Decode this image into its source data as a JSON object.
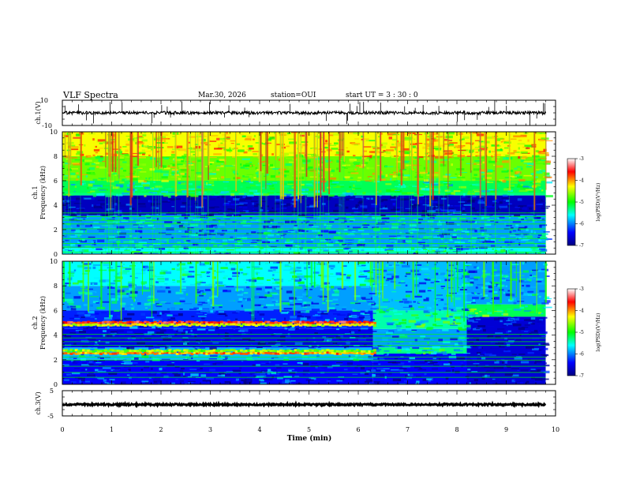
{
  "header": {
    "title": "VLF Spectra",
    "date": "Mar.30, 2026",
    "station": "station=OUI",
    "start": "start UT =  3 : 30 : 0"
  },
  "chart_data": [
    {
      "type": "line",
      "panel": "ch1-waveform",
      "ylabel": "ch.1(V)",
      "ylim": [
        -10,
        10
      ],
      "ytick_labels": [
        "10",
        "-10"
      ],
      "xlim": [
        0,
        10
      ],
      "signal": {
        "baseline_v": 0,
        "noise_v": 1.2,
        "end_min": 9.8
      }
    },
    {
      "type": "heatmap",
      "panel": "ch1-spectrogram",
      "ylabel": "ch.1\nFrequency (kHz)",
      "ylim": [
        0,
        10
      ],
      "ytick_labels": [
        "0",
        "2",
        "4",
        "6",
        "8",
        "10"
      ],
      "xlim": [
        0,
        10
      ],
      "data_end_min": 9.8,
      "colorbar": {
        "label": "log(PSD)(V²/Hz)",
        "range": [
          -7,
          -3
        ],
        "tick_labels": [
          "-3",
          "-4",
          "-5",
          "-6",
          "-7"
        ]
      },
      "bands_khz": [
        {
          "lo": 0,
          "hi": 0.5,
          "level": -5.6
        },
        {
          "lo": 0.5,
          "hi": 3.2,
          "level": -5.9
        },
        {
          "lo": 3.2,
          "hi": 4.8,
          "level": -6.7
        },
        {
          "lo": 4.8,
          "hi": 5.0,
          "level": -5.3
        },
        {
          "lo": 5.0,
          "hi": 6.0,
          "level": -5.2
        },
        {
          "lo": 6.0,
          "hi": 8.0,
          "level": -4.7
        },
        {
          "lo": 8.0,
          "hi": 10.0,
          "level": -4.3
        }
      ],
      "lines_khz": [
        0.2,
        0.6,
        0.9,
        1.3,
        1.7,
        2.1,
        2.5,
        2.8,
        3.1,
        3.4
      ],
      "spheric_count": 85
    },
    {
      "type": "heatmap",
      "panel": "ch2-spectrogram",
      "ylabel": "ch.2\nFrequency (kHz)",
      "ylim": [
        0,
        10
      ],
      "ytick_labels": [
        "0",
        "2",
        "4",
        "6",
        "8",
        "10"
      ],
      "xlim": [
        0,
        10
      ],
      "data_end_min": 9.8,
      "colorbar": {
        "label": "log(PSD)(V²/Hz)",
        "range": [
          -7,
          -3
        ],
        "tick_labels": [
          "-3",
          "-4",
          "-5",
          "-6",
          "-7"
        ]
      },
      "segments": [
        {
          "t0": 0,
          "t1": 6.3,
          "bands_khz": [
            {
              "lo": 0,
              "hi": 2.0,
              "level": -6.4
            },
            {
              "lo": 2.0,
              "hi": 3.0,
              "level": -5.8
            },
            {
              "lo": 3.0,
              "hi": 4.5,
              "level": -6.5
            },
            {
              "lo": 4.5,
              "hi": 6.0,
              "level": -6.3
            },
            {
              "lo": 6.0,
              "hi": 8.0,
              "level": -5.9
            },
            {
              "lo": 8.0,
              "hi": 10.0,
              "level": -5.6
            }
          ]
        },
        {
          "t0": 6.3,
          "t1": 8.2,
          "bands_khz": [
            {
              "lo": 0,
              "hi": 2.5,
              "level": -6.4
            },
            {
              "lo": 2.5,
              "hi": 3.0,
              "level": -5.3
            },
            {
              "lo": 3.0,
              "hi": 4.5,
              "level": -5.9
            },
            {
              "lo": 4.5,
              "hi": 6.0,
              "level": -5.4
            },
            {
              "lo": 6.0,
              "hi": 10.0,
              "level": -5.8
            }
          ]
        },
        {
          "t0": 8.2,
          "t1": 9.8,
          "bands_khz": [
            {
              "lo": 0,
              "hi": 5.5,
              "level": -6.6
            },
            {
              "lo": 5.5,
              "hi": 6.5,
              "level": -5.2
            },
            {
              "lo": 6.5,
              "hi": 10.0,
              "level": -5.9
            }
          ]
        }
      ],
      "emission_lines": [
        {
          "khz": 5.0,
          "t1": 6.3,
          "level": -3.6
        },
        {
          "khz": 2.5,
          "t1": 6.3,
          "level": -4.0
        },
        {
          "khz": 2.7,
          "t1": 6.3,
          "level": -4.6
        },
        {
          "khz": 4.8,
          "t1": 6.3,
          "level": -4.4
        }
      ],
      "lines_khz": [
        0.6,
        1.0,
        1.5,
        2.0,
        2.25,
        3.2,
        3.5,
        3.8,
        4.1
      ],
      "spheric_count": 55
    },
    {
      "type": "line",
      "panel": "ch3-waveform",
      "ylabel": "ch.3(V)",
      "ylim": [
        -5,
        5
      ],
      "ytick_labels": [
        "5",
        "-5"
      ],
      "xlim": [
        0,
        10
      ],
      "xlabel": "Time (min)",
      "xtick_labels": [
        "0",
        "1",
        "2",
        "3",
        "4",
        "5",
        "6",
        "7",
        "8",
        "9",
        "10"
      ],
      "signal": {
        "baseline_v": -0.5,
        "noise_v": 0.35,
        "end_min": 9.8
      }
    }
  ]
}
